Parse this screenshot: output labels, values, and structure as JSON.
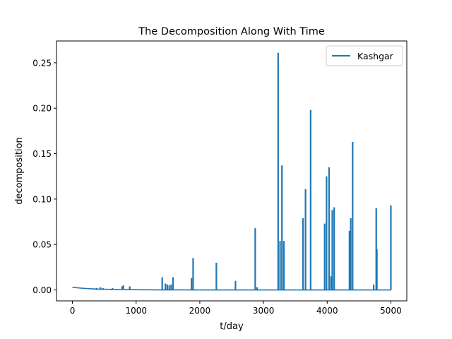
{
  "chart_data": {
    "type": "line",
    "title": "The Decomposition Along With Time",
    "xlabel": "t/day",
    "ylabel": "decomposition",
    "xlim": [
      -250,
      5250
    ],
    "ylim": [
      -0.012,
      0.274
    ],
    "xticks": [
      0,
      1000,
      2000,
      3000,
      4000,
      5000
    ],
    "xtick_labels": [
      "0",
      "1000",
      "2000",
      "3000",
      "4000",
      "5000"
    ],
    "yticks": [
      0.0,
      0.05,
      0.1,
      0.15,
      0.2,
      0.25
    ],
    "ytick_labels": [
      "0.00",
      "0.05",
      "0.10",
      "0.15",
      "0.20",
      "0.25"
    ],
    "grid": false,
    "legend": {
      "position": "top-right",
      "entries": [
        "Kashgar"
      ]
    },
    "series": [
      {
        "name": "Kashgar",
        "color": "#1f77b4",
        "baseline": [
          [
            0,
            0.003
          ],
          [
            30,
            0.0027
          ],
          [
            60,
            0.0025
          ],
          [
            100,
            0.0022
          ],
          [
            200,
            0.0017
          ],
          [
            300,
            0.0013
          ],
          [
            400,
            0.001
          ],
          [
            500,
            0.0008
          ],
          [
            600,
            0.0006
          ],
          [
            700,
            0.0005
          ],
          [
            800,
            0.0004
          ],
          [
            900,
            0.0003
          ],
          [
            1000,
            0.0003
          ],
          [
            1100,
            0.0002
          ],
          [
            1200,
            0.0002
          ],
          [
            1300,
            0.0001
          ],
          [
            1400,
            0.0001
          ],
          [
            1500,
            0.0001
          ],
          [
            2000,
            0.0
          ],
          [
            5000,
            0.0
          ]
        ],
        "spikes": [
          [
            380,
            0.002
          ],
          [
            440,
            0.003
          ],
          [
            480,
            0.002
          ],
          [
            630,
            0.002
          ],
          [
            780,
            0.004
          ],
          [
            800,
            0.005
          ],
          [
            900,
            0.004
          ],
          [
            1410,
            0.014
          ],
          [
            1460,
            0.007
          ],
          [
            1490,
            0.006
          ],
          [
            1520,
            0.005
          ],
          [
            1550,
            0.006
          ],
          [
            1580,
            0.014
          ],
          [
            1870,
            0.013
          ],
          [
            1895,
            0.035
          ],
          [
            2260,
            0.03
          ],
          [
            2560,
            0.01
          ],
          [
            2870,
            0.068
          ],
          [
            2900,
            0.003
          ],
          [
            3230,
            0.261
          ],
          [
            3260,
            0.054
          ],
          [
            3290,
            0.137
          ],
          [
            3320,
            0.054
          ],
          [
            3620,
            0.079
          ],
          [
            3660,
            0.111
          ],
          [
            3740,
            0.198
          ],
          [
            3960,
            0.073
          ],
          [
            3990,
            0.125
          ],
          [
            4030,
            0.135
          ],
          [
            4060,
            0.015
          ],
          [
            4080,
            0.088
          ],
          [
            4110,
            0.091
          ],
          [
            4350,
            0.065
          ],
          [
            4370,
            0.079
          ],
          [
            4400,
            0.163
          ],
          [
            4730,
            0.006
          ],
          [
            4770,
            0.09
          ],
          [
            4780,
            0.045
          ],
          [
            5000,
            0.093
          ]
        ]
      }
    ]
  }
}
